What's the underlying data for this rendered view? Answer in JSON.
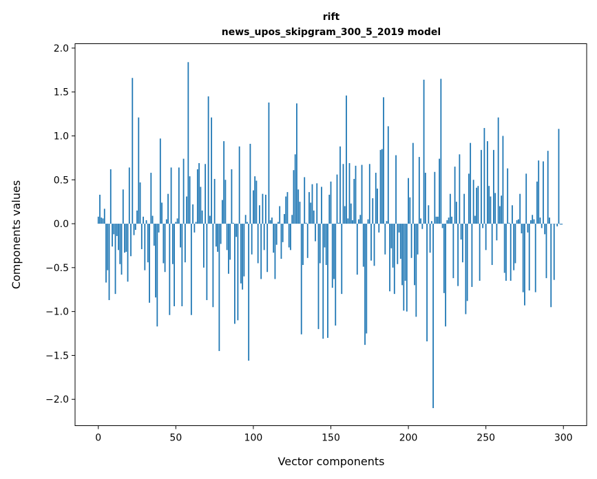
{
  "chart_data": {
    "type": "bar",
    "title_line1": "rift",
    "title_line2": "news_upos_skipgram_300_5_2019 model",
    "xlabel": "Vector components",
    "ylabel": "Components values",
    "xlim": [
      -15,
      315
    ],
    "ylim": [
      -2.3,
      2.05
    ],
    "xticks": [
      0,
      50,
      100,
      150,
      200,
      250,
      300
    ],
    "xtick_labels": [
      "0",
      "50",
      "100",
      "150",
      "200",
      "250",
      "300"
    ],
    "yticks": [
      -2.0,
      -1.5,
      -1.0,
      -0.5,
      0.0,
      0.5,
      1.0,
      1.5,
      2.0
    ],
    "ytick_labels": [
      "−2.0",
      "−1.5",
      "−1.0",
      "−0.5",
      "0.0",
      "0.5",
      "1.0",
      "1.5",
      "2.0"
    ],
    "bar_color": "#1f77b4",
    "values": [
      0.08,
      0.33,
      0.07,
      0.06,
      0.17,
      -0.67,
      -0.53,
      -0.87,
      0.62,
      -0.26,
      -0.12,
      -0.8,
      -0.14,
      -0.3,
      -0.46,
      -0.58,
      0.39,
      -0.33,
      -0.32,
      -0.66,
      0.64,
      -0.37,
      1.66,
      -0.13,
      -0.07,
      0.15,
      1.21,
      0.47,
      -0.29,
      0.08,
      -0.53,
      0.04,
      -0.44,
      -0.9,
      0.58,
      0.09,
      -0.25,
      -0.84,
      -1.17,
      -0.1,
      0.97,
      0.24,
      -0.45,
      -0.55,
      0.05,
      0.34,
      -1.04,
      0.64,
      -0.46,
      -0.94,
      0.02,
      0.06,
      0.64,
      -0.27,
      -0.94,
      0.74,
      -0.44,
      0.31,
      1.84,
      0.54,
      -1.04,
      0.22,
      -0.1,
      0.02,
      0.62,
      0.69,
      0.42,
      0.15,
      -0.5,
      0.68,
      -0.87,
      1.45,
      0.09,
      1.21,
      -0.95,
      0.51,
      -0.26,
      -0.32,
      -1.45,
      -0.23,
      0.27,
      0.94,
      0.5,
      -0.3,
      -0.57,
      -0.41,
      0.62,
      0.01,
      -1.14,
      -0.15,
      -1.1,
      0.88,
      -0.68,
      -0.75,
      -0.6,
      0.1,
      0.02,
      -1.56,
      0.91,
      -0.35,
      0.38,
      0.54,
      0.49,
      -0.45,
      0.21,
      -0.63,
      0.34,
      -0.3,
      0.33,
      -0.55,
      1.38,
      0.04,
      0.07,
      -0.33,
      -0.63,
      -0.24,
      0.02,
      0.2,
      -0.4,
      -0.21,
      0.11,
      0.31,
      0.36,
      -0.27,
      -0.3,
      0.1,
      0.61,
      0.79,
      1.37,
      0.39,
      0.25,
      -1.26,
      -0.47,
      0.53,
      0.01,
      -0.39,
      0.36,
      0.24,
      0.45,
      0.15,
      -0.2,
      0.46,
      -1.2,
      -0.45,
      0.42,
      -1.31,
      -0.27,
      -0.47,
      -1.3,
      0.33,
      0.48,
      -0.73,
      -0.63,
      -1.16,
      0.56,
      0.01,
      0.88,
      -0.8,
      0.68,
      0.2,
      1.46,
      0.06,
      0.69,
      0.23,
      0.04,
      0.51,
      0.66,
      -0.58,
      0.05,
      0.1,
      0.67,
      -0.49,
      -1.38,
      -1.25,
      0.05,
      0.68,
      -0.42,
      0.29,
      -0.48,
      0.58,
      0.4,
      -0.1,
      0.84,
      0.85,
      1.44,
      -0.35,
      0.03,
      1.11,
      -0.77,
      -0.28,
      -0.5,
      -0.8,
      0.78,
      -0.46,
      -0.1,
      -0.4,
      -0.7,
      -0.99,
      -0.65,
      -1.0,
      0.52,
      0.3,
      -0.39,
      0.92,
      -0.7,
      -1.06,
      -0.35,
      0.76,
      0.06,
      -0.06,
      1.64,
      0.58,
      -1.34,
      0.21,
      -0.33,
      0.03,
      -2.1,
      0.59,
      0.08,
      0.08,
      0.74,
      1.65,
      -0.05,
      -0.79,
      -1.17,
      0.04,
      0.07,
      0.34,
      0.08,
      -0.62,
      0.65,
      0.25,
      -0.71,
      0.79,
      -0.18,
      -0.44,
      0.34,
      -1.03,
      -0.88,
      0.57,
      0.92,
      -0.72,
      0.5,
      0.09,
      0.41,
      0.43,
      -0.65,
      0.84,
      -0.05,
      1.09,
      -0.3,
      0.94,
      0.43,
      0.31,
      -0.47,
      0.84,
      0.35,
      -0.19,
      1.21,
      0.2,
      0.32,
      1.0,
      -0.56,
      -0.65,
      0.63,
      0.01,
      -0.65,
      0.21,
      -0.53,
      -0.45,
      0.04,
      0.05,
      0.34,
      -0.11,
      -0.78,
      -0.93,
      0.57,
      -0.1,
      -0.76,
      0.04,
      0.1,
      0.05,
      -0.78,
      0.48,
      0.72,
      0.07,
      -0.05,
      0.71,
      -0.12,
      -0.62,
      0.83,
      0.07,
      -0.95,
      0.0,
      -0.64,
      0.0,
      -0.03,
      1.08,
      -0.01,
      -0.01
    ]
  }
}
